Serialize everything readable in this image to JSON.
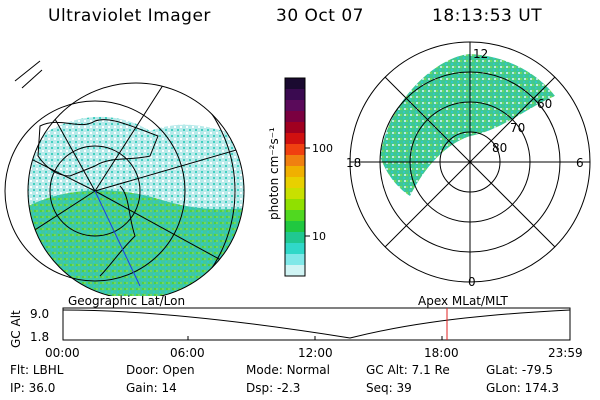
{
  "header": {
    "instrument": "Ultraviolet Imager",
    "date": "30 Oct 07",
    "time": "18:13:53 UT"
  },
  "colorbar": {
    "unit_label": "photon cm⁻²s⁻¹",
    "tick_labels": [
      "100",
      "10"
    ],
    "colors": [
      "#1a0a30",
      "#3a0a50",
      "#5a0a5a",
      "#7a0040",
      "#a00020",
      "#d01010",
      "#f04010",
      "#f08010",
      "#f0b000",
      "#e8d000",
      "#c8e000",
      "#90e000",
      "#50d820",
      "#20c840",
      "#20c890",
      "#30d8c8",
      "#80e8e8",
      "#d0f4f4"
    ]
  },
  "maps": {
    "geo_caption": "Geographic Lat/Lon",
    "mag_caption": "Apex  MLat/MLT",
    "mag_lat_labels": [
      "60",
      "70",
      "80"
    ],
    "mag_mlt_labels": [
      "12",
      "18",
      "6",
      "0"
    ]
  },
  "altitude_panel": {
    "axis_title": "GC Alt",
    "y_labels": [
      "9.0",
      "1.8"
    ],
    "x_labels": [
      "00:00",
      "06:00",
      "12:00",
      "18:00",
      "23:59"
    ],
    "marker_color": "#e02020"
  },
  "footer": {
    "filter_label": "Flt:",
    "filter_value": "LBHL",
    "ip_label": "IP:",
    "ip_value": "36.0",
    "door_label": "Door:",
    "door_value": "Open",
    "gain_label": "Gain:",
    "gain_value": "14",
    "mode_label": "Mode:",
    "mode_value": "Normal",
    "dsp_label": "Dsp:",
    "dsp_value": "-2.3",
    "gcalt_label": "GC Alt:",
    "gcalt_value": "7.1 Re",
    "seq_label": "Seq:",
    "seq_value": "39",
    "glat_label": "GLat:",
    "glat_value": "-79.5",
    "glon_label": "GLon:",
    "glon_value": "174.3"
  }
}
